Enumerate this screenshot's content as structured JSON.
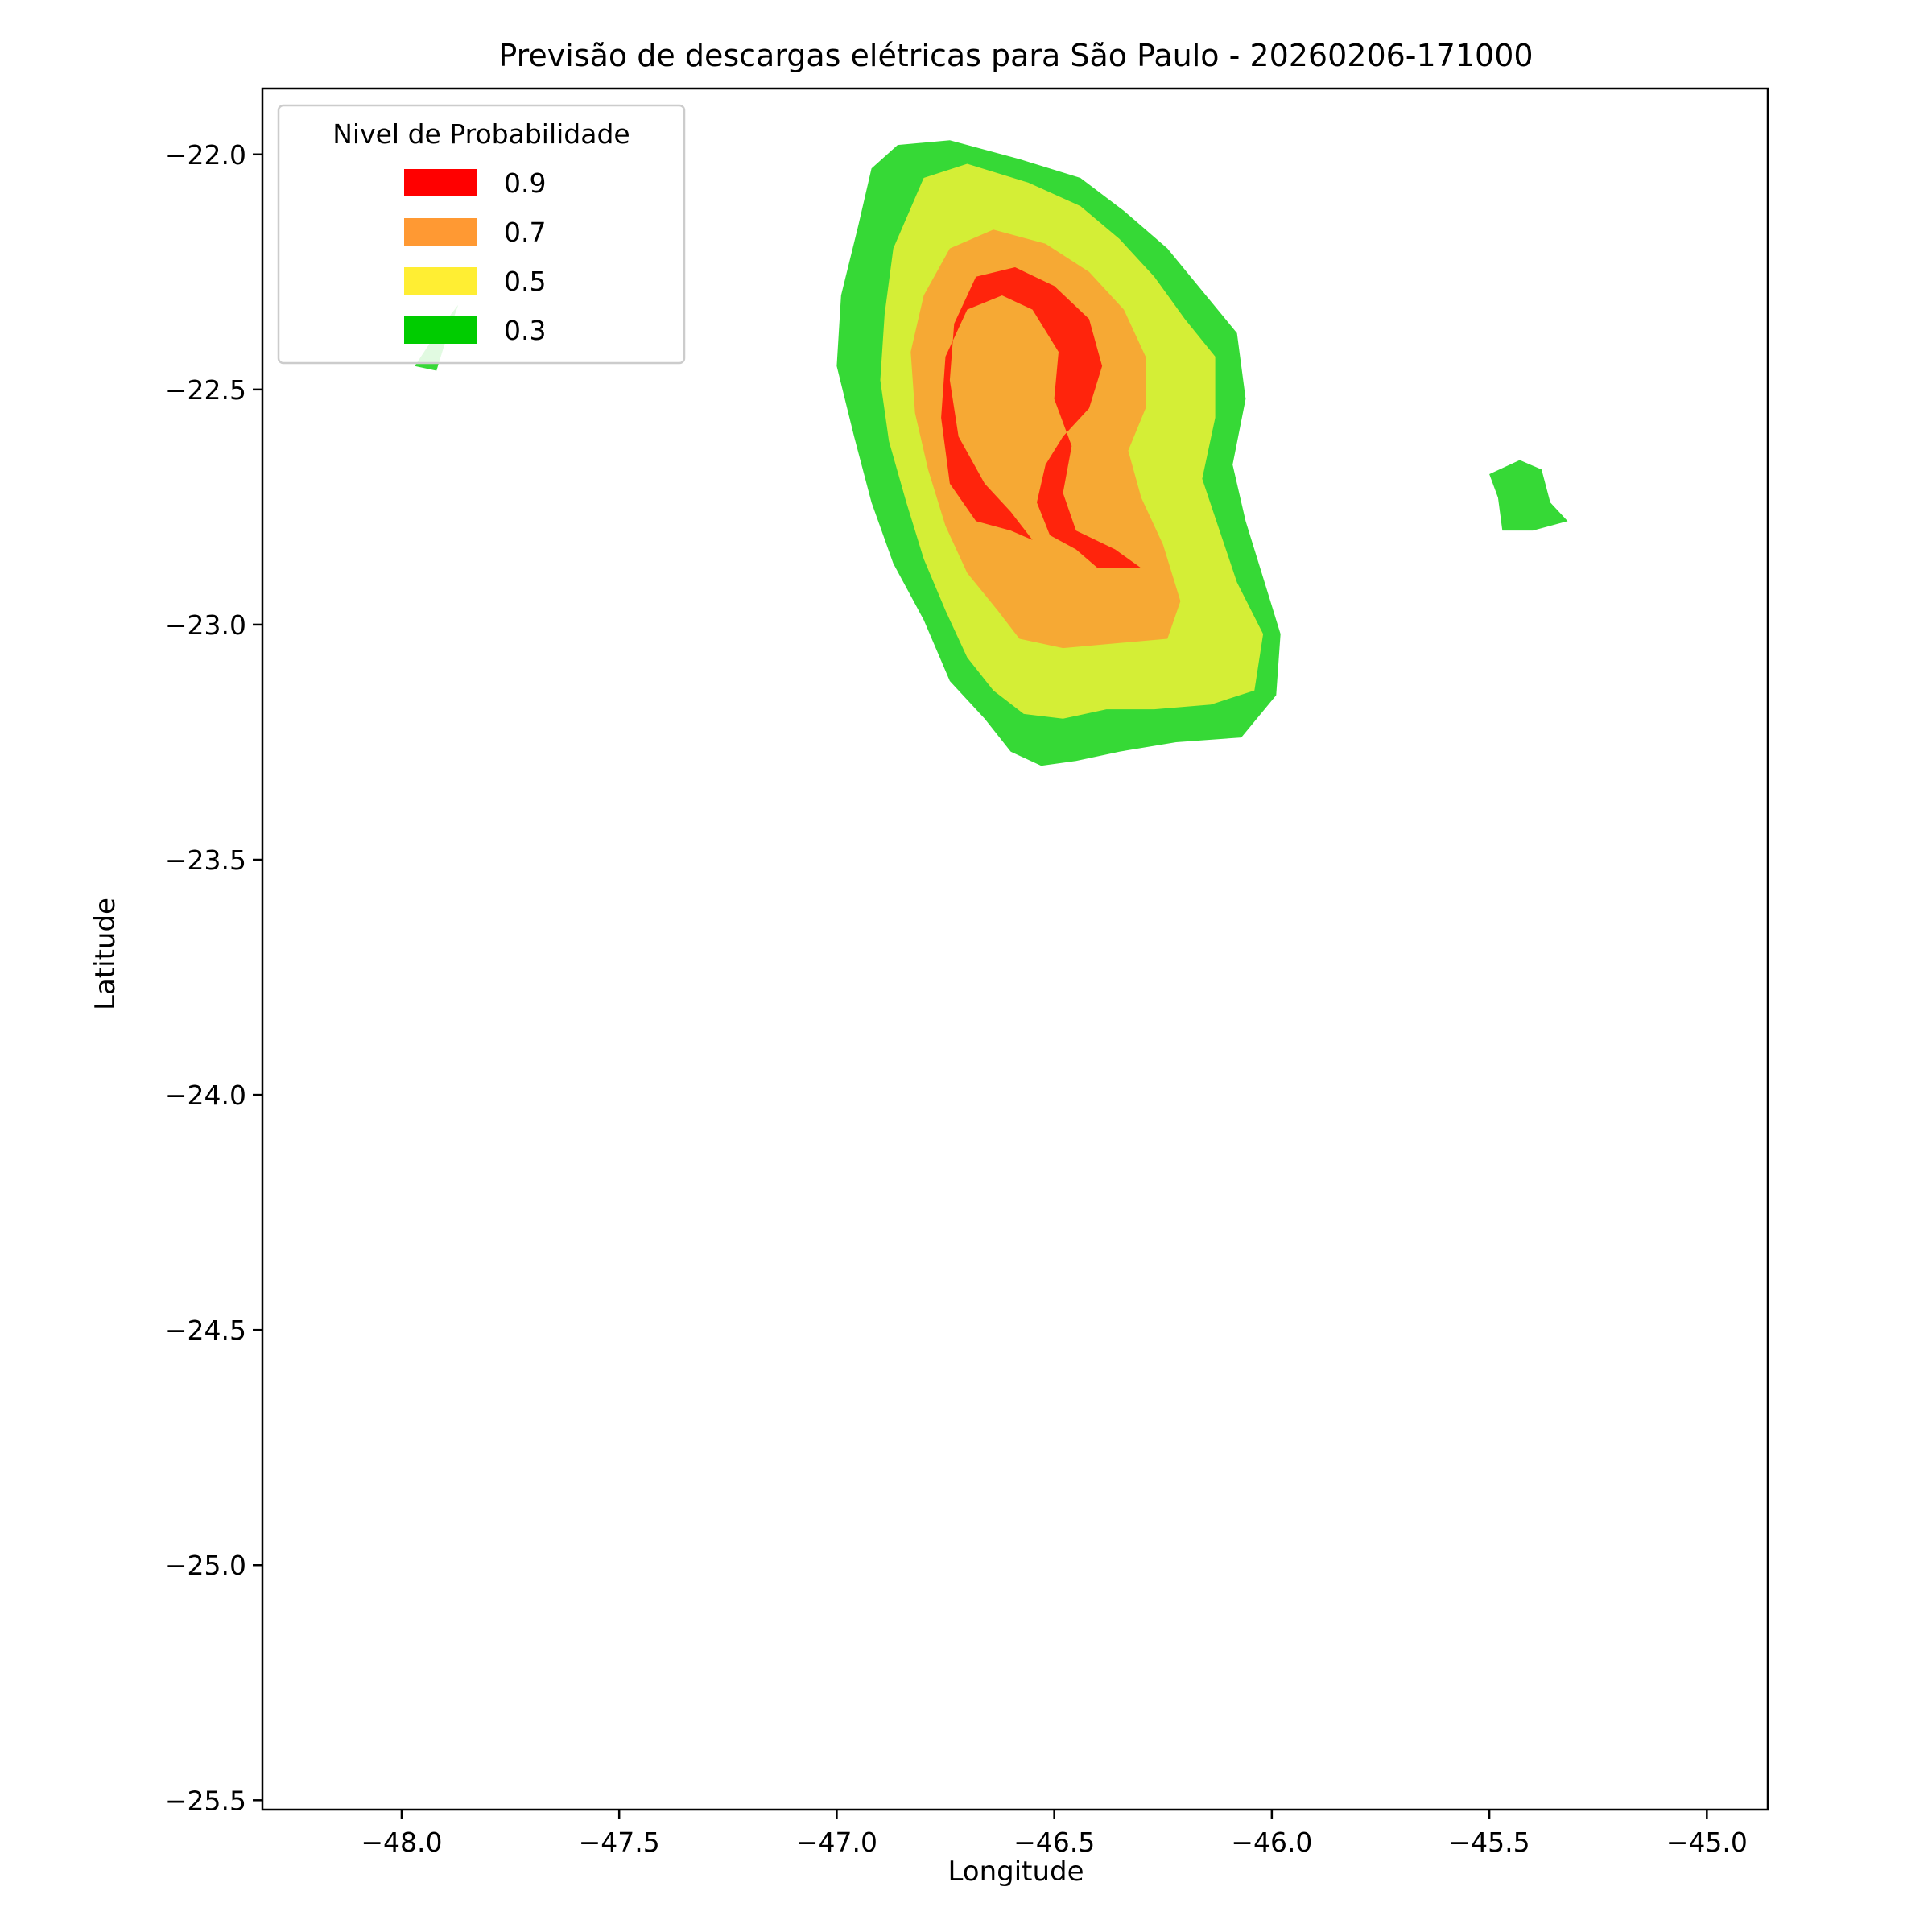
{
  "chart_data": {
    "type": "contour",
    "title": "Previsão de descargas elétricas para São Paulo - 20260206-171000",
    "xlabel": "Longitude",
    "ylabel": "Latitude",
    "xlim": [
      -48.32,
      -44.86
    ],
    "ylim": [
      -25.52,
      -21.86
    ],
    "xticks": [
      -48.0,
      -47.5,
      -47.0,
      -46.5,
      -46.0,
      -45.5,
      -45.0
    ],
    "xtick_labels": [
      "−48.0",
      "−47.5",
      "−47.0",
      "−46.5",
      "−46.0",
      "−45.5",
      "−45.0"
    ],
    "yticks": [
      -22.0,
      -22.5,
      -23.0,
      -23.5,
      -24.0,
      -24.5,
      -25.0,
      -25.5
    ],
    "ytick_labels": [
      "−22.0",
      "−22.5",
      "−23.0",
      "−23.5",
      "−24.0",
      "−24.5",
      "−25.0",
      "−25.5"
    ],
    "grid": false,
    "legend": {
      "title": "Nivel de Probabilidade",
      "placement": "top-left",
      "entries": [
        {
          "label": "0.9",
          "color": "#ff0000"
        },
        {
          "label": "0.7",
          "color": "#ff9933"
        },
        {
          "label": "0.5",
          "color": "#ffee33"
        },
        {
          "label": "0.3",
          "color": "#00cc00"
        }
      ]
    },
    "levels": [
      {
        "level": 0.3,
        "color": "#36d936",
        "regions": [
          [
            [
              -46.86,
              -21.98
            ],
            [
              -46.74,
              -21.97
            ],
            [
              -46.58,
              -22.01
            ],
            [
              -46.44,
              -22.05
            ],
            [
              -46.34,
              -22.12
            ],
            [
              -46.24,
              -22.2
            ],
            [
              -46.16,
              -22.29
            ],
            [
              -46.08,
              -22.38
            ],
            [
              -46.06,
              -22.52
            ],
            [
              -46.09,
              -22.66
            ],
            [
              -46.06,
              -22.78
            ],
            [
              -46.02,
              -22.9
            ],
            [
              -45.98,
              -23.02
            ],
            [
              -45.99,
              -23.15
            ],
            [
              -46.07,
              -23.24
            ],
            [
              -46.22,
              -23.25
            ],
            [
              -46.35,
              -23.27
            ],
            [
              -46.45,
              -23.29
            ],
            [
              -46.53,
              -23.3
            ],
            [
              -46.6,
              -23.27
            ],
            [
              -46.66,
              -23.2
            ],
            [
              -46.74,
              -23.12
            ],
            [
              -46.8,
              -22.99
            ],
            [
              -46.87,
              -22.87
            ],
            [
              -46.92,
              -22.74
            ],
            [
              -46.96,
              -22.6
            ],
            [
              -47.0,
              -22.45
            ],
            [
              -46.99,
              -22.3
            ],
            [
              -46.95,
              -22.15
            ],
            [
              -46.92,
              -22.03
            ]
          ],
          [
            [
              -47.97,
              -22.45
            ],
            [
              -47.92,
              -22.38
            ],
            [
              -47.87,
              -22.32
            ],
            [
              -47.9,
              -22.4
            ],
            [
              -47.92,
              -22.46
            ]
          ],
          [
            [
              -45.5,
              -22.68
            ],
            [
              -45.43,
              -22.65
            ],
            [
              -45.38,
              -22.67
            ],
            [
              -45.36,
              -22.74
            ],
            [
              -45.32,
              -22.78
            ],
            [
              -45.4,
              -22.8
            ],
            [
              -45.47,
              -22.8
            ],
            [
              -45.48,
              -22.73
            ]
          ]
        ]
      },
      {
        "level": 0.5,
        "color": "#d4ee36",
        "regions": [
          [
            [
              -46.8,
              -22.05
            ],
            [
              -46.7,
              -22.02
            ],
            [
              -46.56,
              -22.06
            ],
            [
              -46.44,
              -22.11
            ],
            [
              -46.35,
              -22.18
            ],
            [
              -46.27,
              -22.26
            ],
            [
              -46.2,
              -22.35
            ],
            [
              -46.13,
              -22.43
            ],
            [
              -46.13,
              -22.56
            ],
            [
              -46.16,
              -22.69
            ],
            [
              -46.12,
              -22.8
            ],
            [
              -46.08,
              -22.91
            ],
            [
              -46.02,
              -23.02
            ],
            [
              -46.04,
              -23.14
            ],
            [
              -46.14,
              -23.17
            ],
            [
              -46.27,
              -23.18
            ],
            [
              -46.38,
              -23.18
            ],
            [
              -46.48,
              -23.2
            ],
            [
              -46.57,
              -23.19
            ],
            [
              -46.64,
              -23.14
            ],
            [
              -46.7,
              -23.07
            ],
            [
              -46.75,
              -22.97
            ],
            [
              -46.8,
              -22.86
            ],
            [
              -46.84,
              -22.74
            ],
            [
              -46.88,
              -22.61
            ],
            [
              -46.9,
              -22.48
            ],
            [
              -46.89,
              -22.34
            ],
            [
              -46.87,
              -22.2
            ]
          ]
        ]
      },
      {
        "level": 0.7,
        "color": "#f6a934",
        "regions": [
          [
            [
              -46.74,
              -22.2
            ],
            [
              -46.64,
              -22.16
            ],
            [
              -46.52,
              -22.19
            ],
            [
              -46.42,
              -22.25
            ],
            [
              -46.34,
              -22.33
            ],
            [
              -46.29,
              -22.43
            ],
            [
              -46.29,
              -22.54
            ],
            [
              -46.33,
              -22.63
            ],
            [
              -46.3,
              -22.73
            ],
            [
              -46.25,
              -22.83
            ],
            [
              -46.21,
              -22.95
            ],
            [
              -46.24,
              -23.03
            ],
            [
              -46.36,
              -23.04
            ],
            [
              -46.48,
              -23.05
            ],
            [
              -46.58,
              -23.03
            ],
            [
              -46.63,
              -22.97
            ],
            [
              -46.7,
              -22.89
            ],
            [
              -46.75,
              -22.79
            ],
            [
              -46.79,
              -22.67
            ],
            [
              -46.82,
              -22.55
            ],
            [
              -46.83,
              -22.42
            ],
            [
              -46.8,
              -22.3
            ]
          ]
        ]
      },
      {
        "level": 0.9,
        "color": "#ff240c",
        "regions": [
          [
            [
              -46.68,
              -22.26
            ],
            [
              -46.59,
              -22.24
            ],
            [
              -46.5,
              -22.28
            ],
            [
              -46.42,
              -22.35
            ],
            [
              -46.39,
              -22.45
            ],
            [
              -46.42,
              -22.54
            ],
            [
              -46.48,
              -22.6
            ],
            [
              -46.52,
              -22.66
            ],
            [
              -46.54,
              -22.74
            ],
            [
              -46.51,
              -22.81
            ],
            [
              -46.45,
              -22.84
            ],
            [
              -46.4,
              -22.88
            ],
            [
              -46.3,
              -22.88
            ],
            [
              -46.36,
              -22.84
            ],
            [
              -46.45,
              -22.8
            ],
            [
              -46.48,
              -22.72
            ],
            [
              -46.46,
              -22.62
            ],
            [
              -46.5,
              -22.52
            ],
            [
              -46.49,
              -22.42
            ],
            [
              -46.55,
              -22.33
            ],
            [
              -46.62,
              -22.3
            ],
            [
              -46.7,
              -22.33
            ],
            [
              -46.75,
              -22.43
            ],
            [
              -46.76,
              -22.56
            ],
            [
              -46.74,
              -22.7
            ],
            [
              -46.68,
              -22.78
            ],
            [
              -46.6,
              -22.8
            ],
            [
              -46.55,
              -22.82
            ],
            [
              -46.6,
              -22.76
            ],
            [
              -46.66,
              -22.7
            ],
            [
              -46.72,
              -22.6
            ],
            [
              -46.74,
              -22.48
            ],
            [
              -46.73,
              -22.36
            ]
          ]
        ]
      }
    ]
  }
}
